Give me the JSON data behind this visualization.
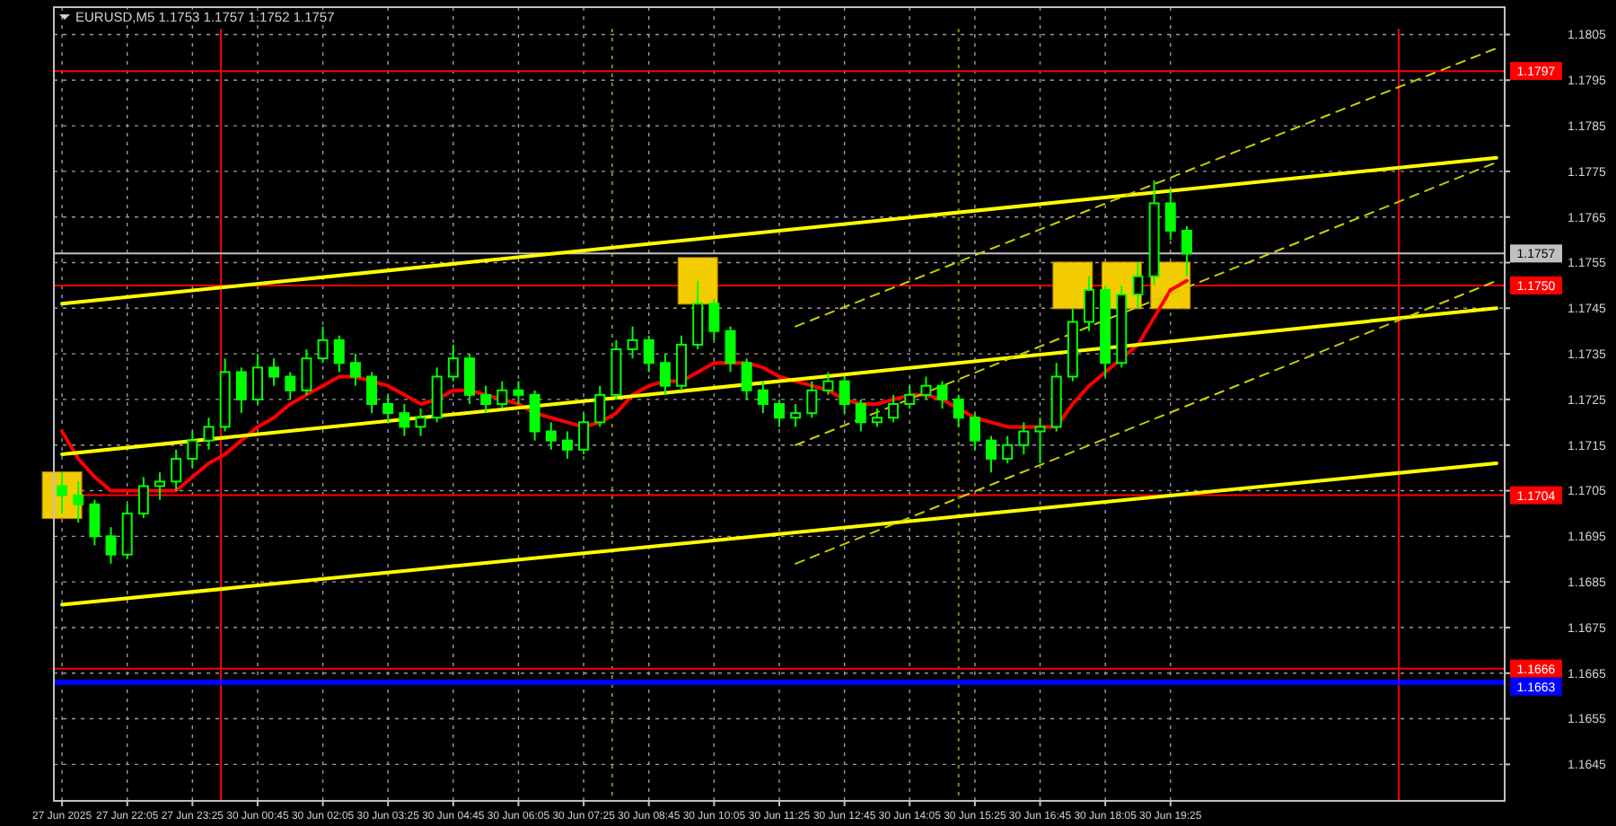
{
  "chart_data": {
    "type": "candlestick",
    "title": "EURUSD,M5  1.1753 1.1757 1.1752 1.1757",
    "categories": [
      "27 Jun 2025",
      null,
      null,
      null,
      "27 Jun 22:05",
      null,
      null,
      null,
      "27 Jun 23:25",
      null,
      null,
      null,
      "30 Jun 00:45",
      null,
      null,
      null,
      "30 Jun 02:05",
      null,
      null,
      null,
      "30 Jun 03:25",
      null,
      null,
      null,
      "30 Jun 04:45",
      null,
      null,
      null,
      "30 Jun 06:05",
      null,
      null,
      null,
      "30 Jun 07:25",
      null,
      null,
      null,
      "30 Jun 08:45",
      null,
      null,
      null,
      "30 Jun 10:05",
      null,
      null,
      null,
      "30 Jun 11:25",
      null,
      null,
      null,
      "30 Jun 12:45",
      null,
      null,
      null,
      "30 Jun 14:05",
      null,
      null,
      null,
      "30 Jun 15:25",
      null,
      null,
      null,
      "30 Jun 16:45",
      null,
      null,
      null,
      "30 Jun 18:05",
      null,
      null,
      null,
      "30 Jun 19:25",
      null,
      null,
      null,
      null,
      null,
      null,
      null,
      null,
      null,
      null,
      null,
      null,
      null,
      null,
      null,
      null,
      null,
      null,
      null,
      null
    ],
    "ylim": [
      1.1637,
      1.1811
    ],
    "yticks": [
      1.1645,
      1.1655,
      1.1665,
      1.1675,
      1.1685,
      1.1695,
      1.1705,
      1.1715,
      1.1725,
      1.1735,
      1.1745,
      1.1755,
      1.1765,
      1.1775,
      1.1785,
      1.1795,
      1.1805
    ],
    "grid": true,
    "series": [
      {
        "color": "#00ff00",
        "ohlc": [
          [
            1.1706,
            1.1709,
            1.17,
            1.1704
          ],
          [
            1.1704,
            1.1707,
            1.1698,
            1.1702
          ],
          [
            1.1702,
            1.1703,
            1.1693,
            1.1695
          ],
          [
            1.1695,
            1.1697,
            1.1689,
            1.1691
          ],
          [
            1.1691,
            1.1702,
            1.169,
            1.17
          ],
          [
            1.17,
            1.1708,
            1.1699,
            1.1706
          ],
          [
            1.1706,
            1.1709,
            1.1703,
            1.1707
          ],
          [
            1.1707,
            1.1714,
            1.1705,
            1.1712
          ],
          [
            1.1712,
            1.1718,
            1.171,
            1.1716
          ],
          [
            1.1716,
            1.1721,
            1.1714,
            1.1719
          ],
          [
            1.1719,
            1.1734,
            1.1718,
            1.1731
          ],
          [
            1.1731,
            1.1732,
            1.1722,
            1.1725
          ],
          [
            1.1725,
            1.1735,
            1.1724,
            1.1732
          ],
          [
            1.1732,
            1.1734,
            1.1728,
            1.173
          ],
          [
            1.173,
            1.1731,
            1.1725,
            1.1727
          ],
          [
            1.1727,
            1.1736,
            1.1726,
            1.1734
          ],
          [
            1.1734,
            1.1741,
            1.1733,
            1.1738
          ],
          [
            1.1738,
            1.1739,
            1.1731,
            1.1733
          ],
          [
            1.1733,
            1.1735,
            1.1728,
            1.173
          ],
          [
            1.173,
            1.1731,
            1.1722,
            1.1724
          ],
          [
            1.1724,
            1.1726,
            1.172,
            1.1722
          ],
          [
            1.1722,
            1.1724,
            1.1717,
            1.1719
          ],
          [
            1.1719,
            1.1723,
            1.1717,
            1.1721
          ],
          [
            1.1721,
            1.1732,
            1.172,
            1.173
          ],
          [
            1.173,
            1.1737,
            1.1729,
            1.1734
          ],
          [
            1.1734,
            1.1735,
            1.1724,
            1.1726
          ],
          [
            1.1726,
            1.1728,
            1.1722,
            1.1724
          ],
          [
            1.1724,
            1.1729,
            1.1723,
            1.1727
          ],
          [
            1.1727,
            1.1729,
            1.1724,
            1.1726
          ],
          [
            1.1726,
            1.1727,
            1.1716,
            1.1718
          ],
          [
            1.1718,
            1.172,
            1.1714,
            1.1716
          ],
          [
            1.1716,
            1.1718,
            1.1712,
            1.1714
          ],
          [
            1.1714,
            1.1722,
            1.1713,
            1.172
          ],
          [
            1.172,
            1.1728,
            1.1719,
            1.1726
          ],
          [
            1.1726,
            1.1738,
            1.1725,
            1.1736
          ],
          [
            1.1736,
            1.1741,
            1.1734,
            1.1738
          ],
          [
            1.1738,
            1.1739,
            1.1731,
            1.1733
          ],
          [
            1.1733,
            1.1735,
            1.1726,
            1.1728
          ],
          [
            1.1728,
            1.1739,
            1.1727,
            1.1737
          ],
          [
            1.1737,
            1.1751,
            1.1736,
            1.1746
          ],
          [
            1.1746,
            1.1747,
            1.1738,
            1.174
          ],
          [
            1.174,
            1.1741,
            1.1731,
            1.1733
          ],
          [
            1.1733,
            1.1734,
            1.1725,
            1.1727
          ],
          [
            1.1727,
            1.1729,
            1.1722,
            1.1724
          ],
          [
            1.1724,
            1.1725,
            1.1719,
            1.1721
          ],
          [
            1.1721,
            1.1724,
            1.1719,
            1.1722
          ],
          [
            1.1722,
            1.1729,
            1.1721,
            1.1727
          ],
          [
            1.1727,
            1.1731,
            1.1726,
            1.1729
          ],
          [
            1.1729,
            1.173,
            1.1722,
            1.1724
          ],
          [
            1.1724,
            1.1725,
            1.1718,
            1.172
          ],
          [
            1.172,
            1.1723,
            1.1719,
            1.1721
          ],
          [
            1.1721,
            1.1726,
            1.172,
            1.1724
          ],
          [
            1.1724,
            1.1728,
            1.1723,
            1.1726
          ],
          [
            1.1726,
            1.173,
            1.1725,
            1.1728
          ],
          [
            1.1728,
            1.1729,
            1.1723,
            1.1725
          ],
          [
            1.1725,
            1.1726,
            1.1719,
            1.1721
          ],
          [
            1.1721,
            1.1722,
            1.1714,
            1.1716
          ],
          [
            1.1716,
            1.1717,
            1.1709,
            1.1712
          ],
          [
            1.1712,
            1.1717,
            1.1711,
            1.1715
          ],
          [
            1.1715,
            1.172,
            1.1713,
            1.1718
          ],
          [
            1.1718,
            1.1721,
            1.1711,
            1.1719
          ],
          [
            1.1719,
            1.1733,
            1.1718,
            1.173
          ],
          [
            1.173,
            1.1745,
            1.1729,
            1.1742
          ],
          [
            1.1742,
            1.1752,
            1.174,
            1.1749
          ],
          [
            1.1749,
            1.175,
            1.173,
            1.1733
          ],
          [
            1.1733,
            1.175,
            1.1732,
            1.1748
          ],
          [
            1.1748,
            1.1755,
            1.1745,
            1.1752
          ],
          [
            1.1752,
            1.1773,
            1.175,
            1.1768
          ],
          [
            1.1768,
            1.1771,
            1.176,
            1.1762
          ],
          [
            1.1762,
            1.1763,
            1.1752,
            1.1757
          ],
          null,
          null,
          null,
          null,
          null,
          null,
          null,
          null,
          null,
          null,
          null,
          null,
          null,
          null,
          null,
          null,
          null,
          null,
          null
        ]
      },
      {
        "type": "line",
        "color": "#ff0000",
        "line_style": "solid",
        "values": [
          1.1718,
          1.1712,
          1.1708,
          1.1705,
          1.1705,
          1.1705,
          1.1705,
          1.1705,
          1.1708,
          1.1711,
          1.1713,
          1.1716,
          1.1719,
          1.1721,
          1.1724,
          1.1726,
          1.1728,
          1.173,
          1.173,
          1.1729,
          1.1728,
          1.1726,
          1.1724,
          1.1725,
          1.1727,
          1.1727,
          1.1726,
          1.1725,
          1.1724,
          1.1722,
          1.1721,
          1.172,
          1.1719,
          1.172,
          1.1722,
          1.1726,
          1.1728,
          1.1729,
          1.1729,
          1.1731,
          1.1733,
          1.1733,
          1.1733,
          1.1732,
          1.173,
          1.1729,
          1.1728,
          1.1727,
          1.1725,
          1.1724,
          1.1724,
          1.1725,
          1.1726,
          1.1726,
          1.1725,
          1.1723,
          1.1721,
          1.172,
          1.1719,
          1.1719,
          1.1719,
          1.1719,
          1.1724,
          1.1728,
          1.1731,
          1.1734,
          1.1737,
          1.1743,
          1.1749,
          1.1751,
          null,
          null,
          null,
          null,
          null,
          null,
          null,
          null,
          null,
          null,
          null,
          null,
          null,
          null,
          null,
          null,
          null,
          null,
          null
        ]
      },
      {
        "type": "line",
        "color": "#ffff00",
        "line_style": "solid",
        "values": [
          1.1746,
          null,
          null,
          null,
          null,
          null,
          null,
          null,
          null,
          null,
          null,
          null,
          null,
          null,
          null,
          null,
          null,
          null,
          null,
          null,
          null,
          null,
          null,
          null,
          null,
          null,
          null,
          null,
          null,
          null,
          null,
          null,
          null,
          null,
          null,
          null,
          null,
          null,
          null,
          null,
          null,
          null,
          null,
          null,
          null,
          null,
          null,
          null,
          null,
          null,
          null,
          null,
          null,
          null,
          null,
          null,
          null,
          null,
          null,
          null,
          null,
          null,
          null,
          null,
          null,
          null,
          null,
          null,
          null,
          null,
          null,
          null,
          null,
          null,
          null,
          null,
          null,
          null,
          null,
          null,
          null,
          null,
          null,
          null,
          null,
          null,
          null,
          null,
          1.1778
        ]
      },
      {
        "type": "line",
        "color": "#ffff00",
        "line_style": "solid",
        "values": [
          1.1713,
          null,
          null,
          null,
          null,
          null,
          null,
          null,
          null,
          null,
          null,
          null,
          null,
          null,
          null,
          null,
          null,
          null,
          null,
          null,
          null,
          null,
          null,
          null,
          null,
          null,
          null,
          null,
          null,
          null,
          null,
          null,
          null,
          null,
          null,
          null,
          null,
          null,
          null,
          null,
          null,
          null,
          null,
          null,
          null,
          null,
          null,
          null,
          null,
          null,
          null,
          null,
          null,
          null,
          null,
          null,
          null,
          null,
          null,
          null,
          null,
          null,
          null,
          null,
          null,
          null,
          null,
          null,
          null,
          null,
          null,
          null,
          null,
          null,
          null,
          null,
          null,
          null,
          null,
          null,
          null,
          null,
          null,
          null,
          null,
          null,
          null,
          null,
          1.1745
        ]
      },
      {
        "type": "line",
        "color": "#ffff00",
        "line_style": "solid",
        "values": [
          1.168,
          null,
          null,
          null,
          null,
          null,
          null,
          null,
          null,
          null,
          null,
          null,
          null,
          null,
          null,
          null,
          null,
          null,
          null,
          null,
          null,
          null,
          null,
          null,
          null,
          null,
          null,
          null,
          null,
          null,
          null,
          null,
          null,
          null,
          null,
          null,
          null,
          null,
          null,
          null,
          null,
          null,
          null,
          null,
          null,
          null,
          null,
          null,
          null,
          null,
          null,
          null,
          null,
          null,
          null,
          null,
          null,
          null,
          null,
          null,
          null,
          null,
          null,
          null,
          null,
          null,
          null,
          null,
          null,
          null,
          null,
          null,
          null,
          null,
          null,
          null,
          null,
          null,
          null,
          null,
          null,
          null,
          null,
          null,
          null,
          null,
          null,
          null,
          1.1711
        ]
      },
      {
        "type": "line",
        "color": "#cccc00",
        "line_style": "dashed",
        "values": [
          null,
          null,
          null,
          null,
          null,
          null,
          null,
          null,
          null,
          null,
          null,
          null,
          null,
          null,
          null,
          null,
          null,
          null,
          null,
          null,
          null,
          null,
          null,
          null,
          null,
          null,
          null,
          null,
          null,
          null,
          null,
          null,
          null,
          null,
          null,
          null,
          null,
          null,
          null,
          null,
          null,
          null,
          null,
          null,
          null,
          1.1741,
          null,
          null,
          null,
          null,
          null,
          null,
          null,
          null,
          null,
          null,
          null,
          null,
          null,
          null,
          null,
          null,
          null,
          null,
          null,
          null,
          null,
          null,
          null,
          null,
          null,
          null,
          null,
          null,
          null,
          null,
          null,
          null,
          null,
          null,
          null,
          null,
          null,
          null,
          null,
          null,
          null,
          null,
          1.1802
        ]
      },
      {
        "type": "line",
        "color": "#cccc00",
        "line_style": "dashed",
        "values": [
          null,
          null,
          null,
          null,
          null,
          null,
          null,
          null,
          null,
          null,
          null,
          null,
          null,
          null,
          null,
          null,
          null,
          null,
          null,
          null,
          null,
          null,
          null,
          null,
          null,
          null,
          null,
          null,
          null,
          null,
          null,
          null,
          null,
          null,
          null,
          null,
          null,
          null,
          null,
          null,
          null,
          null,
          null,
          null,
          null,
          1.1715,
          null,
          null,
          null,
          null,
          null,
          null,
          null,
          null,
          null,
          null,
          null,
          null,
          null,
          null,
          null,
          null,
          null,
          null,
          null,
          null,
          null,
          null,
          null,
          null,
          null,
          null,
          null,
          null,
          null,
          null,
          null,
          null,
          null,
          null,
          null,
          null,
          null,
          null,
          null,
          null,
          null,
          null,
          1.1777
        ]
      },
      {
        "type": "line",
        "color": "#cccc00",
        "line_style": "dashed",
        "values": [
          null,
          null,
          null,
          null,
          null,
          null,
          null,
          null,
          null,
          null,
          null,
          null,
          null,
          null,
          null,
          null,
          null,
          null,
          null,
          null,
          null,
          null,
          null,
          null,
          null,
          null,
          null,
          null,
          null,
          null,
          null,
          null,
          null,
          null,
          null,
          null,
          null,
          null,
          null,
          null,
          null,
          null,
          null,
          null,
          null,
          1.1689,
          null,
          null,
          null,
          null,
          null,
          null,
          null,
          null,
          null,
          null,
          null,
          null,
          null,
          null,
          null,
          null,
          null,
          null,
          null,
          null,
          null,
          null,
          null,
          null,
          null,
          null,
          null,
          null,
          null,
          null,
          null,
          null,
          null,
          null,
          null,
          null,
          null,
          null,
          null,
          null,
          null,
          null,
          1.1751
        ]
      },
      {
        "type": "scatter",
        "color": "#ffd700",
        "marker": "square",
        "values": [
          1.1704,
          null,
          null,
          null,
          null,
          null,
          null,
          null,
          null,
          null,
          null,
          null,
          null,
          null,
          null,
          null,
          null,
          null,
          null,
          null,
          null,
          null,
          null,
          null,
          null,
          null,
          null,
          null,
          null,
          null,
          null,
          null,
          null,
          null,
          null,
          null,
          null,
          null,
          null,
          1.1751,
          null,
          null,
          null,
          null,
          null,
          null,
          null,
          null,
          null,
          null,
          null,
          null,
          null,
          null,
          null,
          null,
          null,
          null,
          null,
          null,
          null,
          null,
          1.175,
          null,
          null,
          1.175,
          null,
          null,
          1.175,
          null,
          null,
          null,
          null,
          null,
          null,
          null,
          null,
          null,
          null,
          null,
          null,
          null,
          null,
          null,
          null,
          null,
          null,
          null,
          null
        ]
      }
    ],
    "ref_lines": [
      {
        "axis": "y",
        "value": 1.1797,
        "label": "1.1797",
        "color": "#ff0000"
      },
      {
        "axis": "y",
        "value": 1.1757,
        "label": "1.1757",
        "color": "#c0c0c0"
      },
      {
        "axis": "y",
        "value": 1.175,
        "label": "1.1750",
        "color": "#ff0000"
      },
      {
        "axis": "y",
        "value": 1.1704,
        "label": "1.1704",
        "color": "#ff0000"
      },
      {
        "axis": "y",
        "value": 1.1666,
        "label": "1.1666",
        "color": "#ff0000"
      },
      {
        "axis": "y",
        "value": 1.1663,
        "label": "1.1663",
        "color": "#0000ff"
      }
    ]
  }
}
